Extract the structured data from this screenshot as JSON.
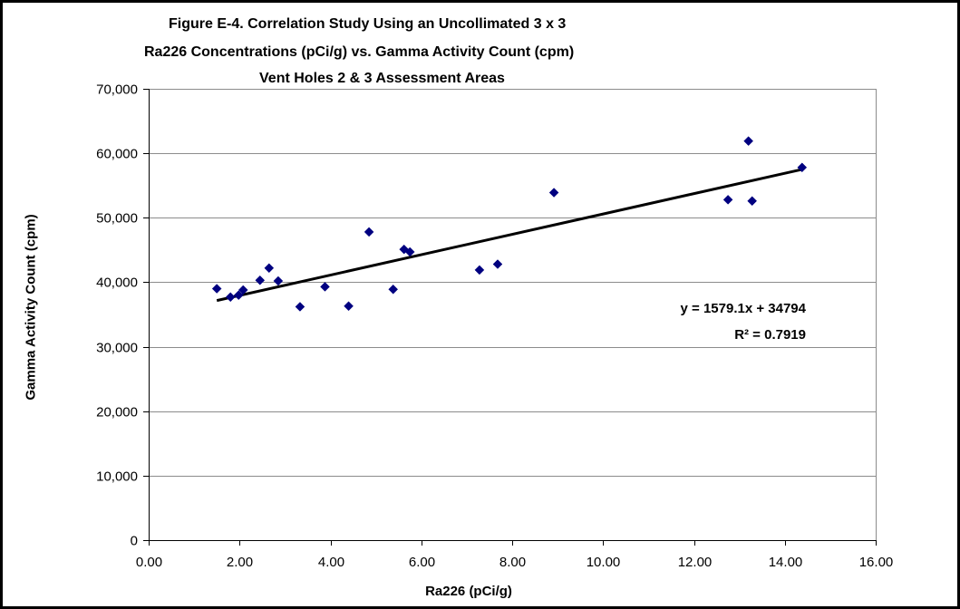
{
  "chart_data": {
    "type": "scatter",
    "title_lines": [
      "Figure E-4.  Correlation Study Using an Uncollimated 3 x 3",
      "Ra226 Concentrations (pCi/g) vs. Gamma Activity Count (cpm)",
      "Vent Holes 2 & 3 Assessment Areas"
    ],
    "xlabel": "Ra226 (pCi/g)",
    "ylabel": "Gamma Activity Count (cpm)",
    "xlim": [
      0,
      16
    ],
    "ylim": [
      0,
      70000
    ],
    "x_ticks": [
      "0.00",
      "2.00",
      "4.00",
      "6.00",
      "8.00",
      "10.00",
      "12.00",
      "14.00",
      "16.00"
    ],
    "y_ticks": [
      "0",
      "10,000",
      "20,000",
      "30,000",
      "40,000",
      "50,000",
      "60,000",
      "70,000"
    ],
    "grid": "horizontal",
    "marker_color": "#000080",
    "trendline_color": "#000000",
    "points": [
      {
        "x": 1.5,
        "y": 39000
      },
      {
        "x": 1.8,
        "y": 37700
      },
      {
        "x": 1.98,
        "y": 38000
      },
      {
        "x": 2.08,
        "y": 38800
      },
      {
        "x": 2.45,
        "y": 40300
      },
      {
        "x": 2.65,
        "y": 42200
      },
      {
        "x": 2.85,
        "y": 40200
      },
      {
        "x": 3.33,
        "y": 36200
      },
      {
        "x": 3.88,
        "y": 39300
      },
      {
        "x": 4.4,
        "y": 36300
      },
      {
        "x": 4.85,
        "y": 47800
      },
      {
        "x": 5.38,
        "y": 38900
      },
      {
        "x": 5.62,
        "y": 45100
      },
      {
        "x": 5.75,
        "y": 44700
      },
      {
        "x": 7.28,
        "y": 41900
      },
      {
        "x": 7.68,
        "y": 42800
      },
      {
        "x": 8.92,
        "y": 53900
      },
      {
        "x": 12.75,
        "y": 52800
      },
      {
        "x": 13.2,
        "y": 61900
      },
      {
        "x": 13.28,
        "y": 52600
      },
      {
        "x": 14.38,
        "y": 57800
      }
    ],
    "trendline": {
      "slope": 1579.1,
      "intercept": 34794,
      "x_start": 1.5,
      "x_end": 14.38,
      "equation": "y = 1579.1x + 34794",
      "r_squared": "R² = 0.7919"
    }
  }
}
